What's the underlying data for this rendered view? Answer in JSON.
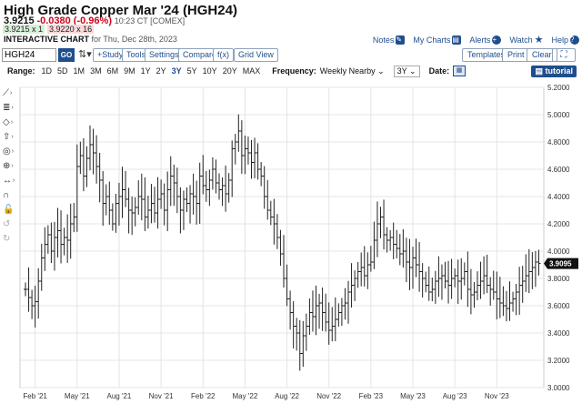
{
  "header": {
    "title": "High Grade Copper Mar '24 (HGH24)",
    "last": "3.9215",
    "change": "-0.0380 (-0.96%)",
    "time": "10:23 CT [COMEX]",
    "bid": "3.9215 x 1",
    "ask": "3.9220 x 16",
    "interactive_label": "INTERACTIVE CHART",
    "date_label": "for Thu, Dec 28th, 2023"
  },
  "toplinks": {
    "notes": "Notes",
    "my_charts": "My Charts",
    "alerts": "Alerts",
    "watch": "Watch",
    "help": "Help"
  },
  "toolbar": {
    "symbol": "HGH24",
    "go": "GO",
    "study": "+Study",
    "tools": "Tools",
    "settings": "Settings",
    "compare": "Compare",
    "fx": "f(x)",
    "grid_view": "Grid View",
    "templates": "Templates",
    "print": "Print",
    "clear": "Clear"
  },
  "rangebar": {
    "range_label": "Range:",
    "ranges": [
      "1D",
      "5D",
      "1M",
      "3M",
      "6M",
      "9M",
      "1Y",
      "2Y",
      "3Y",
      "5Y",
      "10Y",
      "20Y",
      "MAX"
    ],
    "active_range": "3Y",
    "frequency_label": "Frequency:",
    "frequency_value": "Weekly Nearby",
    "period_value": "3Y",
    "date_label": "Date:",
    "tutorial": "tutorial"
  },
  "sidetools": [
    "line-tool",
    "fib-tool",
    "shape-tool",
    "arrow-tool",
    "measure-tool",
    "crosshair-tool",
    "magnet-tool",
    "lock-tool",
    "undo-tool",
    "redo-tool"
  ],
  "chart_data": {
    "type": "ohlc",
    "y_ticks": [
      "5.2000",
      "5.0000",
      "4.8000",
      "4.6000",
      "4.4000",
      "4.2000",
      "4.0000",
      "3.8000",
      "3.6000",
      "3.4000",
      "3.2000",
      "3.0000"
    ],
    "ylim": [
      3.0,
      5.2
    ],
    "x_ticks": [
      "Feb '21",
      "May '21",
      "Aug '21",
      "Nov '21",
      "Feb '22",
      "May '22",
      "Aug '22",
      "Nov '22",
      "Feb '23",
      "May '23",
      "Aug '23",
      "Nov '23"
    ],
    "last_price_label": "3.9095",
    "last_price": 3.9095,
    "closes": [
      3.72,
      3.66,
      3.6,
      3.63,
      3.78,
      3.95,
      4.05,
      4.12,
      4.0,
      4.1,
      4.15,
      4.05,
      4.1,
      4.08,
      4.2,
      4.25,
      4.62,
      4.7,
      4.55,
      4.68,
      4.78,
      4.72,
      4.62,
      4.52,
      4.35,
      4.4,
      4.3,
      4.2,
      4.35,
      4.4,
      4.45,
      4.38,
      4.3,
      4.28,
      4.32,
      4.4,
      4.38,
      4.25,
      4.3,
      4.35,
      4.28,
      4.38,
      4.42,
      4.3,
      4.45,
      4.55,
      4.5,
      4.4,
      4.3,
      4.38,
      4.35,
      4.42,
      4.4,
      4.35,
      4.55,
      4.48,
      4.45,
      4.52,
      4.6,
      4.5,
      4.45,
      4.48,
      4.42,
      4.52,
      4.75,
      4.8,
      4.88,
      4.7,
      4.75,
      4.72,
      4.65,
      4.72,
      4.6,
      4.55,
      4.4,
      4.3,
      4.25,
      4.2,
      4.1,
      3.98,
      3.8,
      3.65,
      3.55,
      3.45,
      3.4,
      3.25,
      3.38,
      3.45,
      3.55,
      3.52,
      3.6,
      3.62,
      3.55,
      3.48,
      3.42,
      3.45,
      3.5,
      3.55,
      3.6,
      3.62,
      3.7,
      3.75,
      3.8,
      3.85,
      3.88,
      3.82,
      3.9,
      3.92,
      4.08,
      4.2,
      4.25,
      4.12,
      4.08,
      4.1,
      4.05,
      4.02,
      3.98,
      4.0,
      3.92,
      3.88,
      3.95,
      3.9,
      3.85,
      3.8,
      3.75,
      3.7,
      3.72,
      3.78,
      3.8,
      3.82,
      3.78,
      3.75,
      3.8,
      3.82,
      3.78,
      3.8,
      3.85,
      3.72,
      3.68,
      3.7,
      3.75,
      3.78,
      3.82,
      3.75,
      3.72,
      3.7,
      3.65,
      3.62,
      3.6,
      3.58,
      3.62,
      3.65,
      3.7,
      3.75,
      3.78,
      3.82,
      3.85,
      3.88,
      3.92,
      3.91
    ]
  },
  "colors": {
    "accent": "#1f4e8c",
    "negative": "#d0021b",
    "bar": "#222222",
    "grid": "#e4e4e4"
  }
}
